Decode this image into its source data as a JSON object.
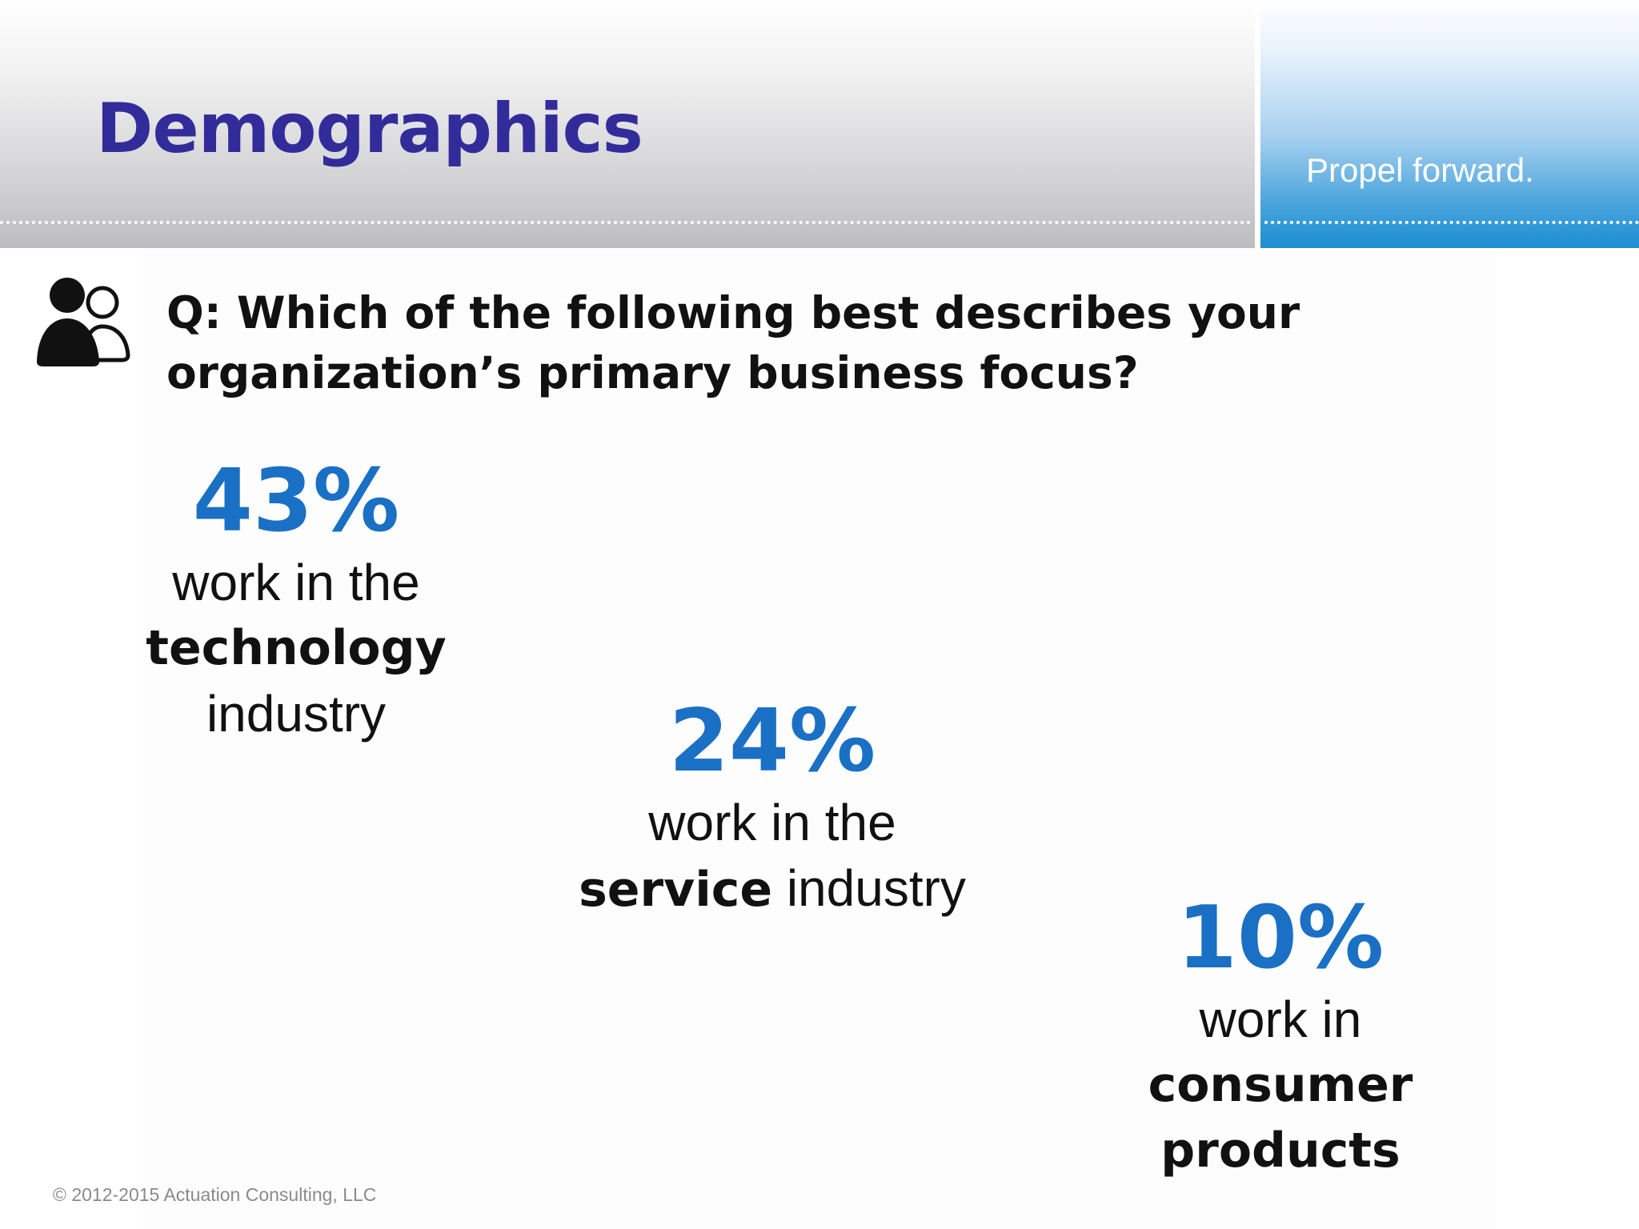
{
  "header": {
    "title": "Demographics",
    "tagline": "Propel forward."
  },
  "question": {
    "icon": "people-group-icon",
    "text": "Q: Which of the following best describes your organization’s primary business focus?"
  },
  "stats": {
    "technology": {
      "percent": "43%",
      "line1": "work in the",
      "line2_bold": "technology",
      "line3": "industry"
    },
    "service": {
      "percent": "24%",
      "line1": "work in the",
      "line2_bold": "service",
      "line2_rest": " industry"
    },
    "consumer": {
      "percent": "10%",
      "line1": "work in",
      "line2_bold": "consumer",
      "line3_bold": "products"
    }
  },
  "footer": {
    "copyright": "© 2012-2015 Actuation Consulting, LLC"
  },
  "colors": {
    "title": "#322c9a",
    "percent": "#1a70c4",
    "accent_blue": "#1c8ed0"
  }
}
